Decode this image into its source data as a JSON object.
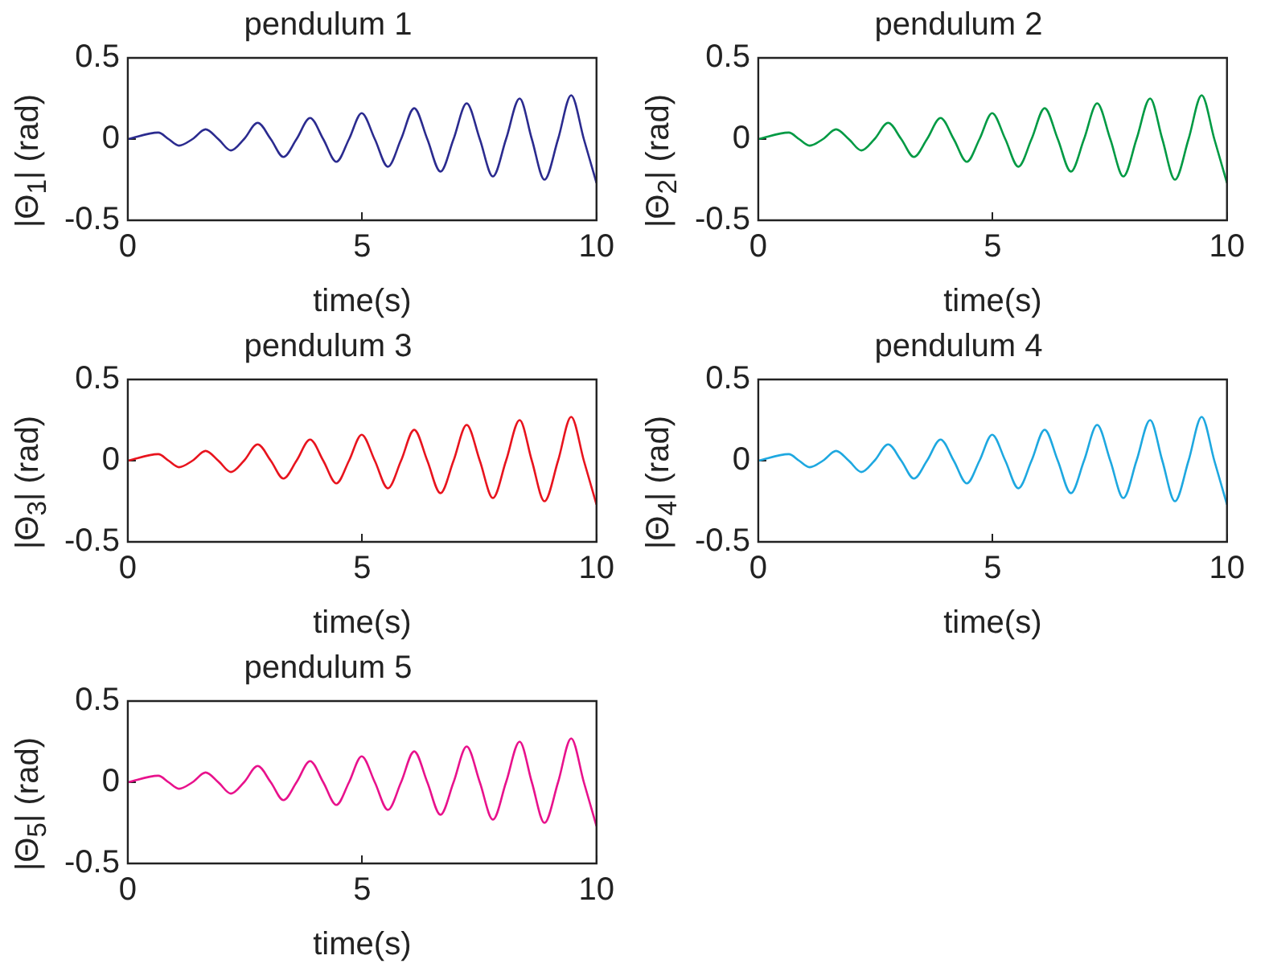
{
  "chart_data": [
    {
      "type": "line",
      "title": "pendulum 1",
      "xlabel": "time(s)",
      "ylabel": "|Θ$_{1}$| (rad)",
      "xlim": [
        0,
        10
      ],
      "ylim": [
        -0.5,
        0.5
      ],
      "xticks": [
        0,
        5,
        10
      ],
      "yticks": [
        -0.5,
        0,
        0.5
      ],
      "x": [
        0,
        0.65,
        0.87,
        1.09,
        1.38,
        1.66,
        1.93,
        2.2,
        2.48,
        2.77,
        3.05,
        3.32,
        3.6,
        3.89,
        4.17,
        4.45,
        4.72,
        4.99,
        5.27,
        5.55,
        5.83,
        6.11,
        6.39,
        6.67,
        6.95,
        7.23,
        7.51,
        7.79,
        8.07,
        8.36,
        8.62,
        8.89,
        9.18,
        9.46,
        9.73,
        10
      ],
      "series": [
        {
          "color": "#2b2b8f",
          "values": [
            0,
            0.04,
            0,
            -0.04,
            0,
            0.06,
            0,
            -0.07,
            0,
            0.1,
            0,
            -0.11,
            0,
            0.13,
            0,
            -0.14,
            0,
            0.16,
            0,
            -0.17,
            0,
            0.19,
            0,
            -0.2,
            0,
            0.22,
            0,
            -0.23,
            0,
            0.25,
            0,
            -0.25,
            0,
            0.27,
            0,
            -0.27
          ]
        }
      ]
    },
    {
      "type": "line",
      "title": "pendulum 2",
      "xlabel": "time(s)",
      "ylabel": "|Θ$_{2}$| (rad)",
      "xlim": [
        0,
        10
      ],
      "ylim": [
        -0.5,
        0.5
      ],
      "xticks": [
        0,
        5,
        10
      ],
      "yticks": [
        -0.5,
        0,
        0.5
      ],
      "x": [
        0,
        0.65,
        0.87,
        1.09,
        1.38,
        1.66,
        1.93,
        2.2,
        2.48,
        2.77,
        3.05,
        3.32,
        3.6,
        3.89,
        4.17,
        4.45,
        4.72,
        4.99,
        5.27,
        5.55,
        5.83,
        6.11,
        6.39,
        6.67,
        6.95,
        7.23,
        7.51,
        7.79,
        8.07,
        8.36,
        8.62,
        8.89,
        9.18,
        9.46,
        9.73,
        10
      ],
      "series": [
        {
          "color": "#009a44",
          "values": [
            0,
            0.04,
            0,
            -0.04,
            0,
            0.06,
            0,
            -0.07,
            0,
            0.1,
            0,
            -0.11,
            0,
            0.13,
            0,
            -0.14,
            0,
            0.16,
            0,
            -0.17,
            0,
            0.19,
            0,
            -0.2,
            0,
            0.22,
            0,
            -0.23,
            0,
            0.25,
            0,
            -0.25,
            0,
            0.27,
            0,
            -0.27
          ]
        }
      ]
    },
    {
      "type": "line",
      "title": "pendulum 3",
      "xlabel": "time(s)",
      "ylabel": "|Θ$_{3}$| (rad)",
      "xlim": [
        0,
        10
      ],
      "ylim": [
        -0.5,
        0.5
      ],
      "xticks": [
        0,
        5,
        10
      ],
      "yticks": [
        -0.5,
        0,
        0.5
      ],
      "x": [
        0,
        0.65,
        0.87,
        1.09,
        1.38,
        1.66,
        1.93,
        2.2,
        2.48,
        2.77,
        3.05,
        3.32,
        3.6,
        3.89,
        4.17,
        4.45,
        4.72,
        4.99,
        5.27,
        5.55,
        5.83,
        6.11,
        6.39,
        6.67,
        6.95,
        7.23,
        7.51,
        7.79,
        8.07,
        8.36,
        8.62,
        8.89,
        9.18,
        9.46,
        9.73,
        10
      ],
      "series": [
        {
          "color": "#e8141e",
          "values": [
            0,
            0.04,
            0,
            -0.04,
            0,
            0.06,
            0,
            -0.07,
            0,
            0.1,
            0,
            -0.11,
            0,
            0.13,
            0,
            -0.14,
            0,
            0.16,
            0,
            -0.17,
            0,
            0.19,
            0,
            -0.2,
            0,
            0.22,
            0,
            -0.23,
            0,
            0.25,
            0,
            -0.25,
            0,
            0.27,
            0,
            -0.27
          ]
        }
      ]
    },
    {
      "type": "line",
      "title": "pendulum 4",
      "xlabel": "time(s)",
      "ylabel": "|Θ$_{4}$| (rad)",
      "xlim": [
        0,
        10
      ],
      "ylim": [
        -0.5,
        0.5
      ],
      "xticks": [
        0,
        5,
        10
      ],
      "yticks": [
        -0.5,
        0,
        0.5
      ],
      "x": [
        0,
        0.65,
        0.87,
        1.09,
        1.38,
        1.66,
        1.93,
        2.2,
        2.48,
        2.77,
        3.05,
        3.32,
        3.6,
        3.89,
        4.17,
        4.45,
        4.72,
        4.99,
        5.27,
        5.55,
        5.83,
        6.11,
        6.39,
        6.67,
        6.95,
        7.23,
        7.51,
        7.79,
        8.07,
        8.36,
        8.62,
        8.89,
        9.18,
        9.46,
        9.73,
        10
      ],
      "series": [
        {
          "color": "#1ea8e0",
          "values": [
            0,
            0.04,
            0,
            -0.04,
            0,
            0.06,
            0,
            -0.07,
            0,
            0.1,
            0,
            -0.11,
            0,
            0.13,
            0,
            -0.14,
            0,
            0.16,
            0,
            -0.17,
            0,
            0.19,
            0,
            -0.2,
            0,
            0.22,
            0,
            -0.23,
            0,
            0.25,
            0,
            -0.25,
            0,
            0.27,
            0,
            -0.27
          ]
        }
      ]
    },
    {
      "type": "line",
      "title": "pendulum 5",
      "xlabel": "time(s)",
      "ylabel": "|Θ$_{5}$| (rad)",
      "xlim": [
        0,
        10
      ],
      "ylim": [
        -0.5,
        0.5
      ],
      "xticks": [
        0,
        5,
        10
      ],
      "yticks": [
        -0.5,
        0,
        0.5
      ],
      "x": [
        0,
        0.65,
        0.87,
        1.09,
        1.38,
        1.66,
        1.93,
        2.2,
        2.48,
        2.77,
        3.05,
        3.32,
        3.6,
        3.89,
        4.17,
        4.45,
        4.72,
        4.99,
        5.27,
        5.55,
        5.83,
        6.11,
        6.39,
        6.67,
        6.95,
        7.23,
        7.51,
        7.79,
        8.07,
        8.36,
        8.62,
        8.89,
        9.18,
        9.46,
        9.73,
        10
      ],
      "series": [
        {
          "color": "#e8128c",
          "values": [
            0,
            0.04,
            0,
            -0.04,
            0,
            0.06,
            0,
            -0.07,
            0,
            0.1,
            0,
            -0.11,
            0,
            0.13,
            0,
            -0.14,
            0,
            0.16,
            0,
            -0.17,
            0,
            0.19,
            0,
            -0.2,
            0,
            0.22,
            0,
            -0.23,
            0,
            0.25,
            0,
            -0.25,
            0,
            0.27,
            0,
            -0.27
          ]
        }
      ]
    }
  ]
}
